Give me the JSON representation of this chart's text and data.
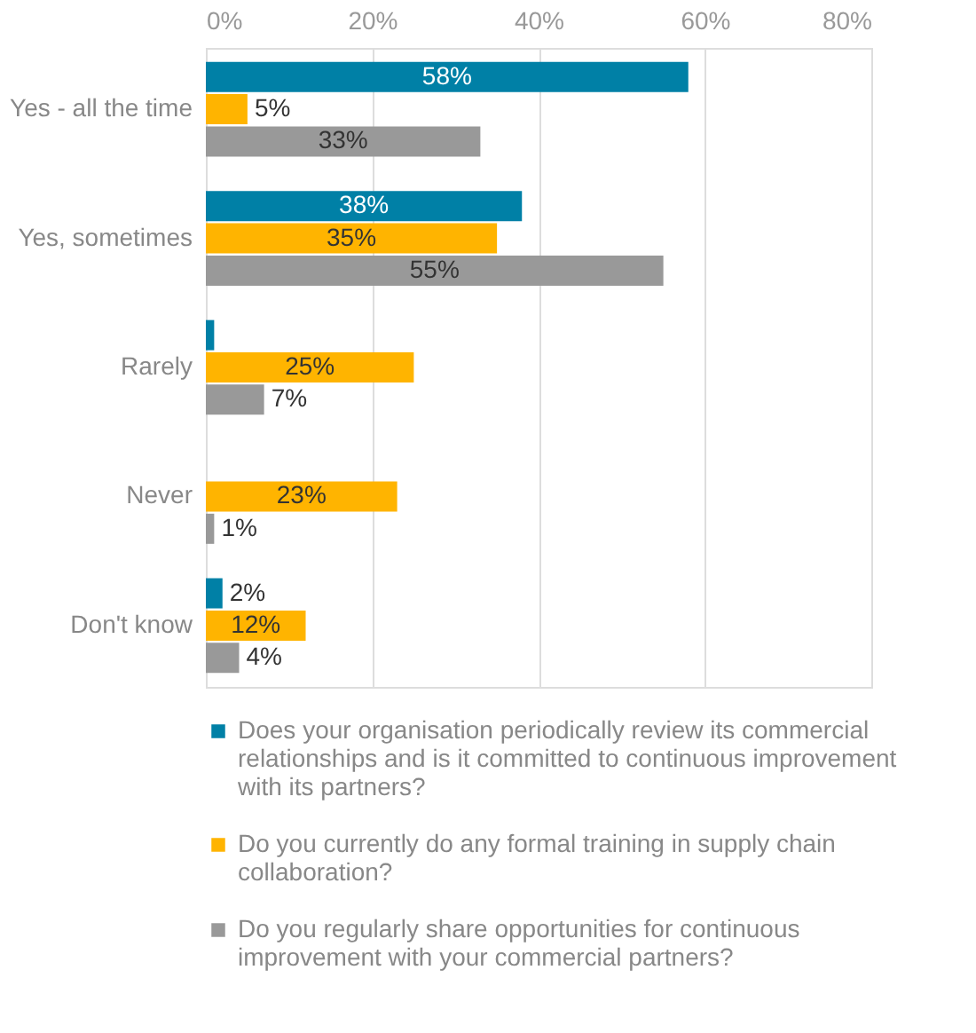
{
  "chart_data": {
    "type": "bar",
    "orientation": "horizontal",
    "categories": [
      "Yes - all the time",
      "Yes, sometimes",
      "Rarely",
      "Never",
      "Don't know"
    ],
    "series": [
      {
        "name": "Does your organisation periodically review its commercial relationships and is it committed to continuous improvement with its partners?",
        "color": "#0080a6",
        "values": [
          58,
          38,
          1,
          null,
          2
        ],
        "value_labels": [
          "58%",
          "38%",
          null,
          null,
          "2%"
        ]
      },
      {
        "name": "Do you currently do any formal training in supply chain collaboration?",
        "color": "#ffb400",
        "values": [
          5,
          35,
          25,
          23,
          12
        ],
        "value_labels": [
          "5%",
          "35%",
          "25%",
          "23%",
          "12%"
        ]
      },
      {
        "name": "Do you regularly share opportunities for continuous improvement with your commercial partners?",
        "color": "#999999",
        "values": [
          33,
          55,
          7,
          1,
          4
        ],
        "value_labels": [
          "33%",
          "55%",
          "7%",
          "1%",
          "4%"
        ]
      }
    ],
    "xlim": [
      0,
      80
    ],
    "xticks": [
      {
        "value": 0,
        "label": "0%"
      },
      {
        "value": 20,
        "label": "20%"
      },
      {
        "value": 40,
        "label": "40%"
      },
      {
        "value": 60,
        "label": "60%"
      },
      {
        "value": 80,
        "label": "80%"
      }
    ],
    "grid": "x",
    "legend": "bottom"
  }
}
